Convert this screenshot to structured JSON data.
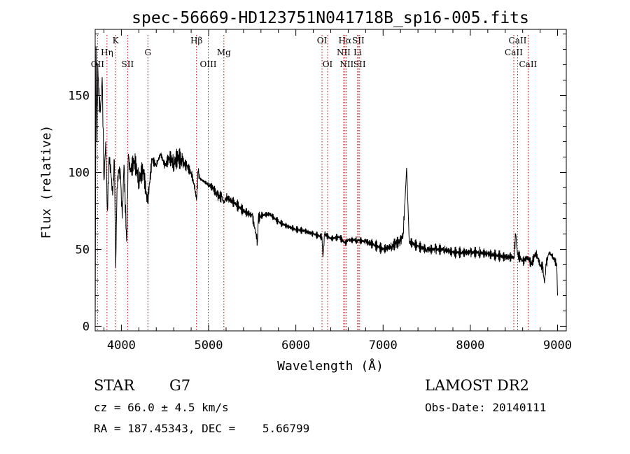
{
  "chart_data": {
    "type": "line",
    "title": "spec-56669-HD123751N041718B_sp16-005.fits",
    "xlabel": "Wavelength (Å)",
    "ylabel": "Flux (relative)",
    "xlim": [
      3700,
      9100
    ],
    "ylim": [
      -3,
      193
    ],
    "xticks": [
      4000,
      5000,
      6000,
      7000,
      8000,
      9000
    ],
    "yticks": [
      0,
      50,
      100,
      150
    ],
    "grid": false,
    "line_color": "#000000",
    "marker_color": "#cc0000",
    "x": [
      3700,
      3710,
      3720,
      3730,
      3740,
      3760,
      3780,
      3800,
      3820,
      3840,
      3860,
      3880,
      3900,
      3920,
      3935,
      3950,
      3970,
      3990,
      4010,
      4030,
      4060,
      4080,
      4100,
      4150,
      4200,
      4250,
      4300,
      4350,
      4400,
      4450,
      4500,
      4550,
      4600,
      4650,
      4700,
      4750,
      4800,
      4850,
      4861,
      4880,
      4900,
      4950,
      5000,
      5050,
      5100,
      5150,
      5175,
      5200,
      5300,
      5400,
      5500,
      5560,
      5570,
      5600,
      5700,
      5800,
      5900,
      6000,
      6100,
      6200,
      6300,
      6310,
      6330,
      6400,
      6500,
      6563,
      6600,
      6700,
      6800,
      6900,
      7000,
      7100,
      7150,
      7200,
      7230,
      7250,
      7270,
      7300,
      7400,
      7500,
      7600,
      7700,
      7800,
      7900,
      8000,
      8100,
      8200,
      8300,
      8400,
      8500,
      8520,
      8540,
      8600,
      8660,
      8700,
      8750,
      8800,
      8830,
      8850,
      8870,
      8900,
      8950,
      8990,
      9000
    ],
    "y": [
      0,
      182,
      120,
      170,
      150,
      140,
      162,
      95,
      120,
      75,
      110,
      100,
      85,
      108,
      38,
      90,
      102,
      98,
      70,
      105,
      55,
      112,
      100,
      108,
      95,
      102,
      80,
      108,
      105,
      112,
      104,
      110,
      106,
      110,
      107,
      104,
      100,
      88,
      82,
      100,
      96,
      94,
      92,
      90,
      85,
      84,
      80,
      84,
      80,
      75,
      72,
      55,
      70,
      72,
      73,
      68,
      65,
      63,
      62,
      60,
      58,
      45,
      60,
      57,
      58,
      54,
      56,
      56,
      55,
      53,
      50,
      52,
      54,
      55,
      60,
      80,
      103,
      55,
      52,
      50,
      50,
      50,
      48,
      48,
      48,
      48,
      47,
      46,
      45,
      45,
      60,
      47,
      42,
      45,
      40,
      48,
      40,
      38,
      28,
      40,
      48,
      45,
      40,
      20
    ],
    "lines": [
      {
        "label": "OII",
        "x": 3727,
        "row": 3
      },
      {
        "label": "Hη",
        "x": 3835,
        "row": 2
      },
      {
        "label": "K",
        "x": 3934,
        "row": 1
      },
      {
        "label": "SII",
        "x": 4072,
        "row": 3
      },
      {
        "label": "G",
        "x": 4304,
        "row": 2
      },
      {
        "label": "Hβ",
        "x": 4861,
        "row": 1
      },
      {
        "label": "OIII",
        "x": 4996,
        "row": 3
      },
      {
        "label": "Mg",
        "x": 5175,
        "row": 2
      },
      {
        "label": "OI",
        "x": 6300,
        "row": 1
      },
      {
        "label": "OI",
        "x": 6364,
        "row": 3
      },
      {
        "label": "Hα",
        "x": 6563,
        "row": 1
      },
      {
        "label": "NII",
        "x": 6548,
        "row": 2
      },
      {
        "label": "NII",
        "x": 6583,
        "row": 3
      },
      {
        "label": "SII",
        "x": 6716,
        "row": 1
      },
      {
        "label": "Li",
        "x": 6708,
        "row": 2
      },
      {
        "label": "SII",
        "x": 6731,
        "row": 3
      },
      {
        "label": "CaII",
        "x": 8542,
        "row": 1
      },
      {
        "label": "CaII",
        "x": 8498,
        "row": 2
      },
      {
        "label": "CaII",
        "x": 8662,
        "row": 3
      }
    ]
  },
  "info": {
    "object_type": "STAR",
    "subclass": "G7",
    "survey": "LAMOST DR2",
    "redshift": "cz = 66.0 ± 4.5 km/s",
    "obs_date": "Obs-Date: 20140111",
    "coords": "RA = 187.45343, DEC =    5.66799"
  }
}
